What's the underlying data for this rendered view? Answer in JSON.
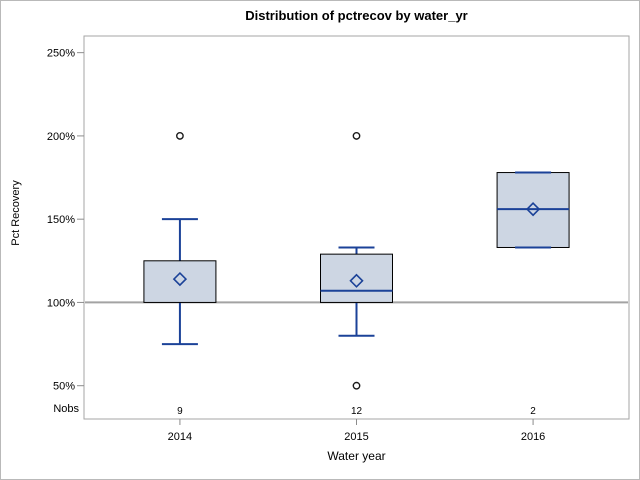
{
  "page": {
    "title": "Distribution of pctrecov by water_yr"
  },
  "chart_data": {
    "type": "boxplot",
    "title": "Distribution of pctrecov by water_yr",
    "xlabel": "Water year",
    "ylabel": "Pct Recovery",
    "categories": [
      "2014",
      "2015",
      "2016"
    ],
    "nobs_label": "Nobs",
    "nobs": [
      9,
      12,
      2
    ],
    "yticks": [
      {
        "value": 50,
        "label": "50%"
      },
      {
        "value": 100,
        "label": "100%"
      },
      {
        "value": 150,
        "label": "150%"
      },
      {
        "value": 200,
        "label": "200%"
      },
      {
        "value": 250,
        "label": "250%"
      }
    ],
    "ylim": [
      30,
      260
    ],
    "reference_line": 100,
    "grid": false,
    "legend": "none",
    "series": [
      {
        "category": "2014",
        "n": 9,
        "whisker_low": 75,
        "q1": 100,
        "median": 100,
        "q3": 125,
        "whisker_high": 150,
        "mean": 114,
        "outliers": [
          200
        ]
      },
      {
        "category": "2015",
        "n": 12,
        "whisker_low": 80,
        "q1": 100,
        "median": 107,
        "q3": 129,
        "whisker_high": 133,
        "mean": 113,
        "outliers": [
          200,
          50
        ]
      },
      {
        "category": "2016",
        "n": 2,
        "whisker_low": 133,
        "q1": 133,
        "median": 156,
        "q3": 178,
        "whisker_high": 178,
        "mean": 156,
        "outliers": []
      }
    ],
    "colors": {
      "box_fill": "#cdd6e3",
      "box_border": "#000000",
      "line_blue": "#1b4298",
      "reference_gray": "#a3a3a3",
      "frame_gray": "#a6a6a6",
      "tick_gray": "#8c8c8c",
      "outlier": "#1a1a1a",
      "text": "#000000"
    }
  }
}
